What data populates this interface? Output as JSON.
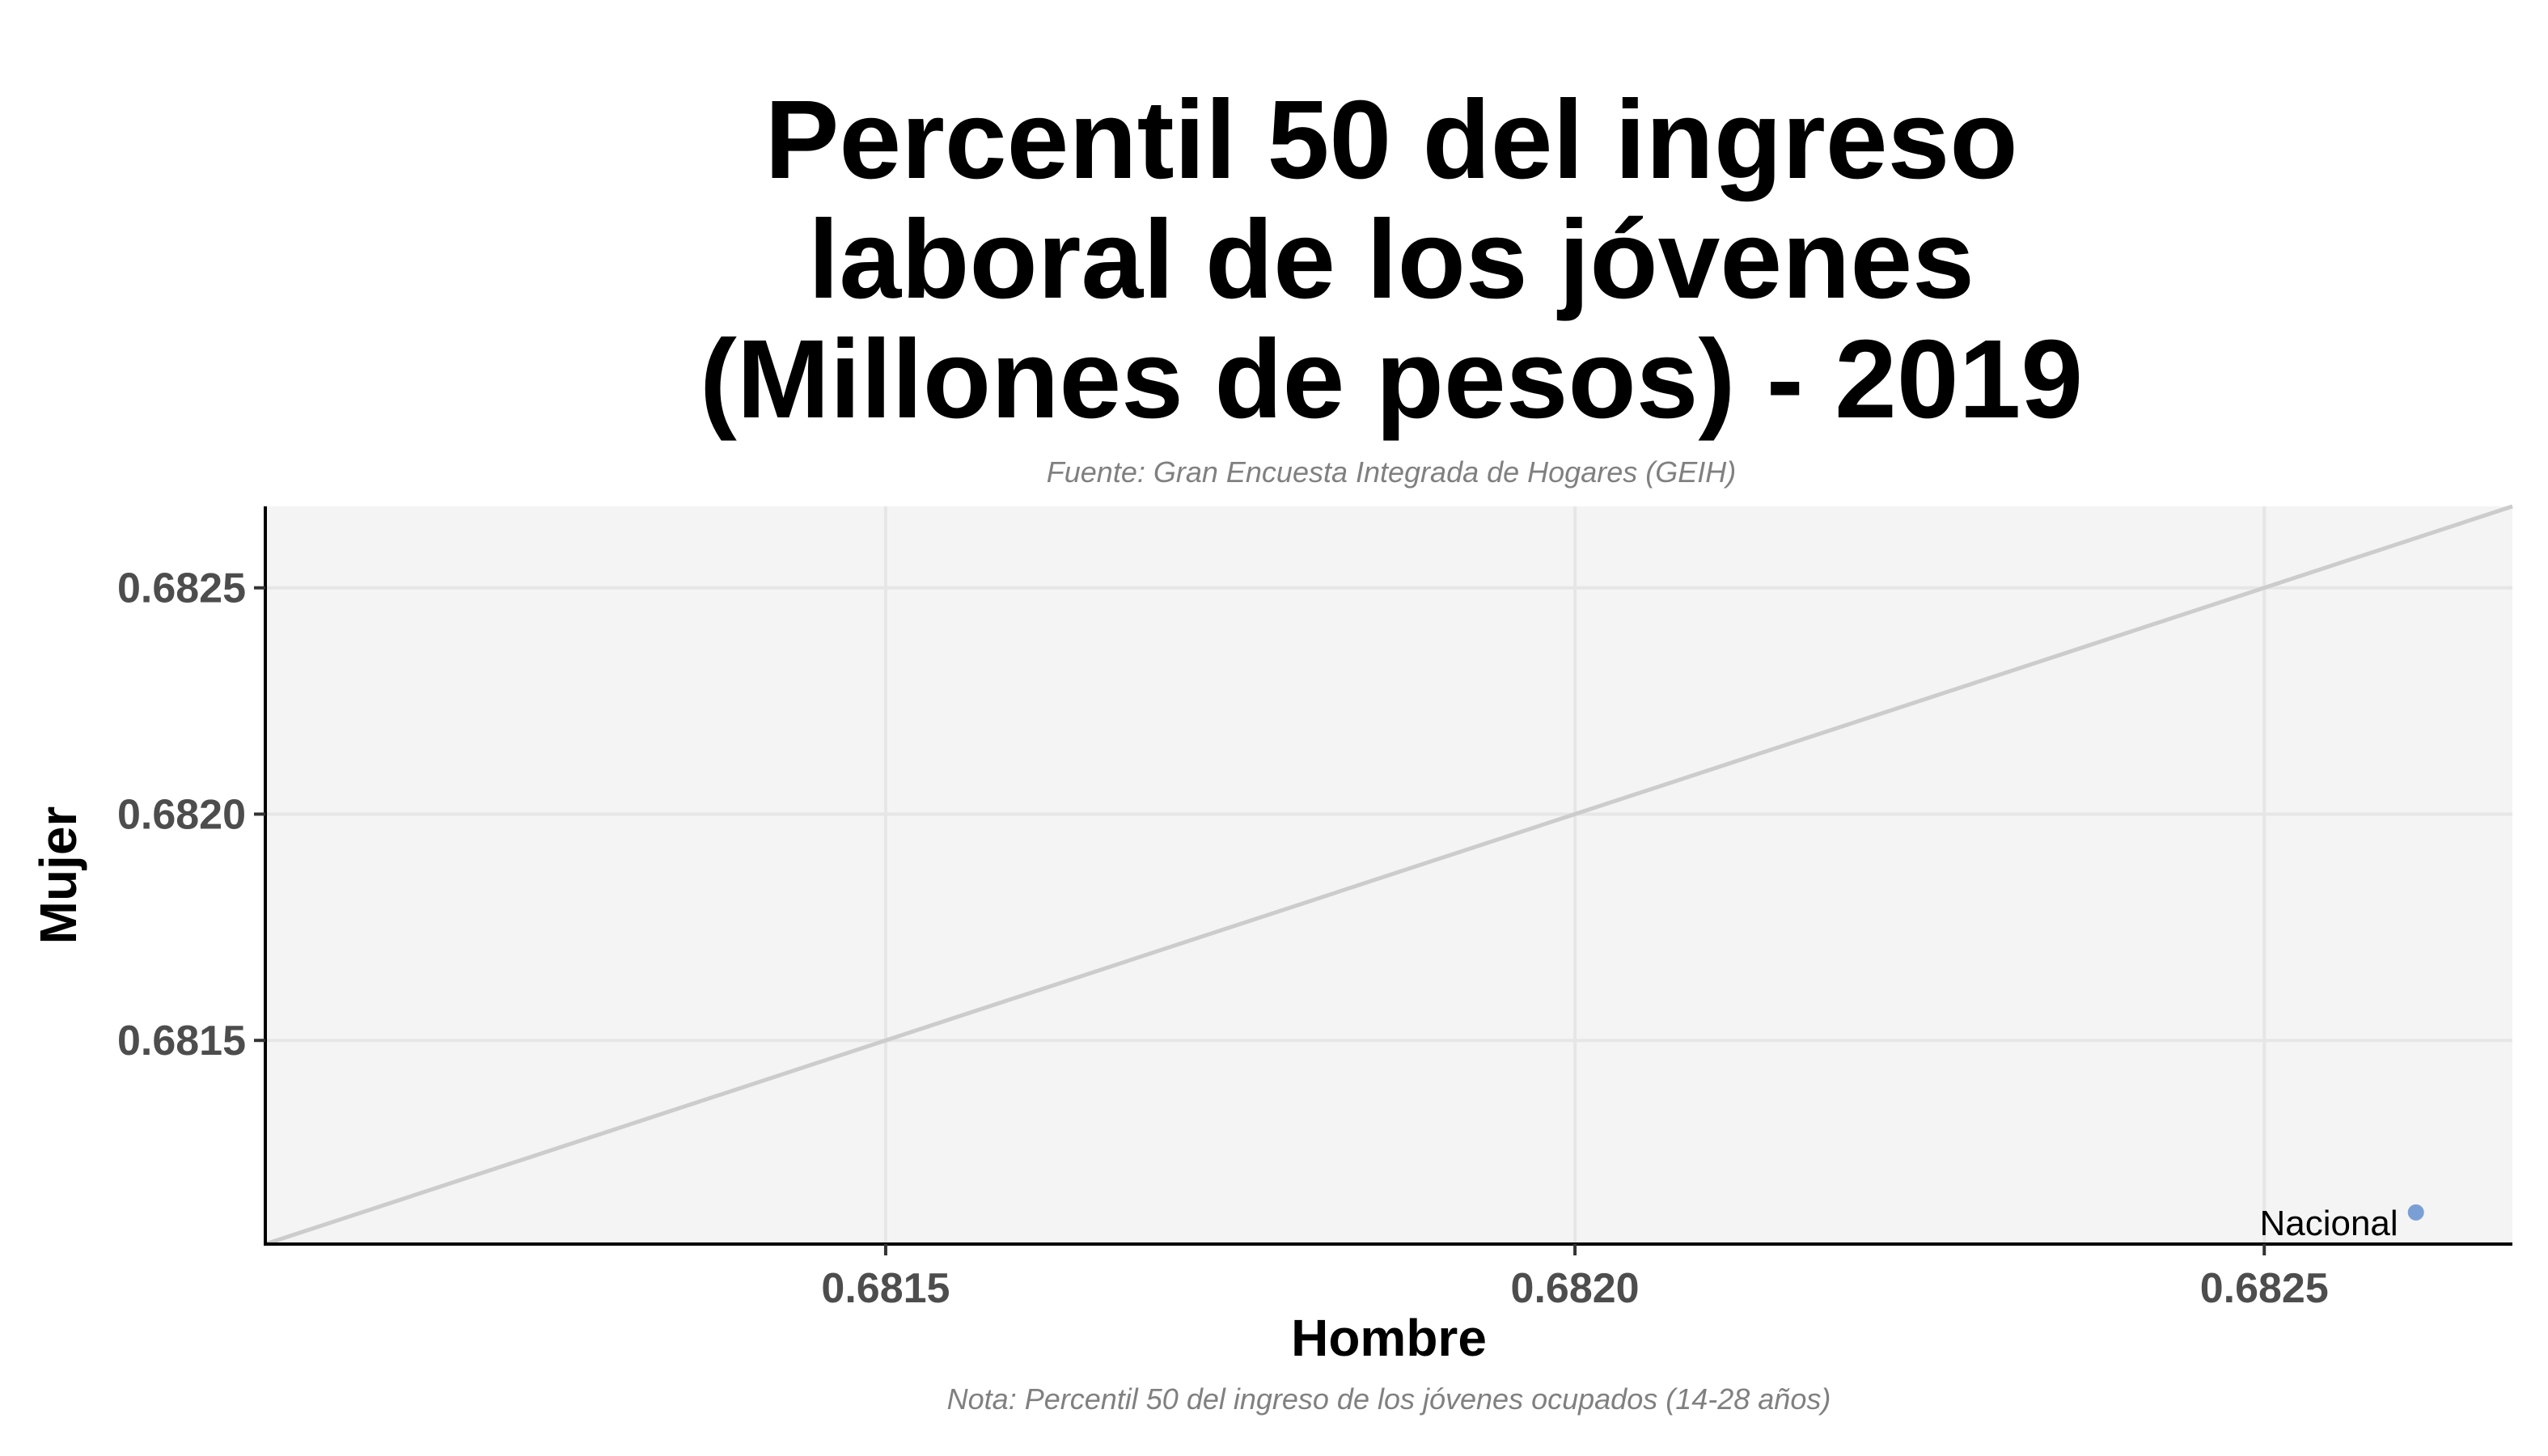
{
  "chart_data": {
    "type": "scatter",
    "title_lines": [
      "Percentil 50 del ingreso",
      "laboral de los jóvenes",
      "(Millones de pesos) - 2019"
    ],
    "subtitle": "Fuente: Gran Encuesta Integrada de Hogares (GEIH)",
    "caption": "Nota: Percentil 50 del ingreso de los jóvenes ocupados (14-28 años)",
    "xlabel": "Hombre",
    "ylabel": "Mujer",
    "xlim": [
      0.68105,
      0.68268
    ],
    "ylim": [
      0.68105,
      0.68268
    ],
    "xticks": [
      "0.6815",
      "0.6820",
      "0.6825"
    ],
    "yticks": [
      "0.6815",
      "0.6820",
      "0.6825"
    ],
    "grid": true,
    "reference_line": "y = x",
    "points": [
      {
        "label": "Nacional",
        "x": 0.68261,
        "y": 0.68112
      }
    ],
    "colors": {
      "panel_background": "#f4f4f4",
      "grid": "#e6e6e6",
      "reference_line": "#cccccc",
      "point": "#7a9fd4"
    }
  }
}
